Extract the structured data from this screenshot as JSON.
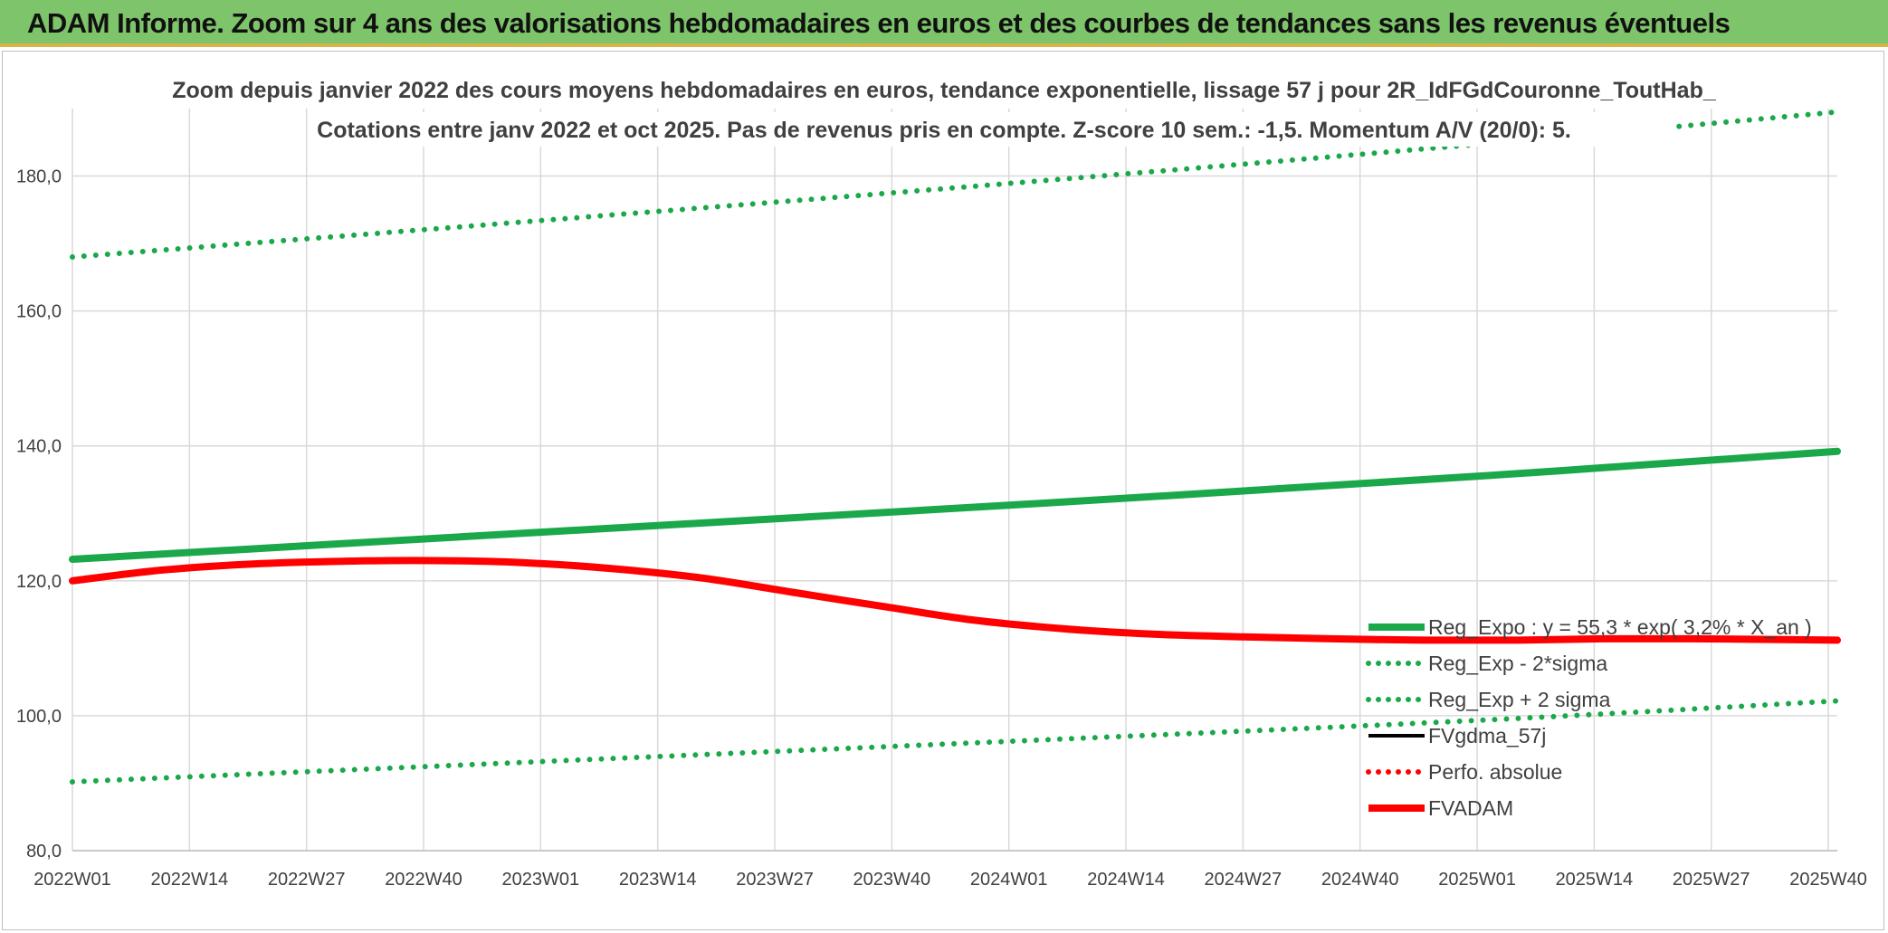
{
  "banner": {
    "title": "ADAM Informe. Zoom sur 4 ans des valorisations hebdomadaires en euros et des courbes de tendances sans les revenus éventuels"
  },
  "colors": {
    "banner_bg": "#7dc46a",
    "reg_green": "#1aa84a",
    "fvadam_red": "#ff0000",
    "fvgdma_black": "#000000",
    "perfo_red": "#ff0000",
    "grid": "#d9d9d9",
    "axis_text": "#404040",
    "title_text": "#404040"
  },
  "chart_data": {
    "type": "line",
    "title_line1": "Zoom depuis janvier 2022 des cours moyens hebdomadaires en euros, tendance exponentielle, lissage 57 j pour 2R_IdFGdCouronne_ToutHab_",
    "title_line2": "Cotations entre janv 2022 et oct 2025. Pas de revenus pris en compte. Z-score 10 sem.: -1,5. Momentum A/V (20/0): 5.",
    "xlabel": "",
    "ylabel": "",
    "ylim": [
      80,
      190
    ],
    "yticks": [
      "80,0",
      "100,0",
      "120,0",
      "140,0",
      "160,0",
      "180,0"
    ],
    "ytick_values": [
      80,
      100,
      120,
      140,
      160,
      180
    ],
    "xlim": [
      0,
      196
    ],
    "categories": [
      "2022W01",
      "2022W14",
      "2022W27",
      "2022W40",
      "2023W01",
      "2023W14",
      "2023W27",
      "2023W40",
      "2024W01",
      "2024W14",
      "2024W27",
      "2024W40",
      "2025W01",
      "2025W14",
      "2025W27",
      "2025W40"
    ],
    "category_positions": [
      0,
      13,
      26,
      39,
      52,
      65,
      78,
      91,
      104,
      117,
      130,
      143,
      156,
      169,
      182,
      195
    ],
    "legend_position": "right",
    "series": [
      {
        "name": "Reg_Expo : y = 55,3 * exp( 3,2% * X_an )",
        "style": "solid-thick",
        "color": "#1aa84a",
        "x": [
          0,
          52,
          104,
          156,
          196
        ],
        "values": [
          123.2,
          127.2,
          131.2,
          135.5,
          139.2
        ]
      },
      {
        "name": "Reg_Exp - 2*sigma",
        "style": "dotted",
        "color": "#1aa84a",
        "x": [
          0,
          52,
          104,
          156,
          196
        ],
        "values": [
          90.2,
          93.2,
          96.2,
          99.3,
          102.2
        ]
      },
      {
        "name": "Reg_Exp + 2 sigma",
        "style": "dotted",
        "color": "#1aa84a",
        "x": [
          0,
          52,
          104,
          156,
          196
        ],
        "values": [
          168.0,
          173.4,
          178.9,
          184.7,
          189.5
        ]
      },
      {
        "name": "FVgdma_57j",
        "style": "solid",
        "color": "#000000",
        "x": [
          0,
          10,
          20,
          30,
          40,
          50,
          60,
          70,
          80,
          90,
          100,
          110,
          120,
          130,
          140,
          150,
          160,
          170,
          180,
          190,
          196
        ],
        "values": [
          120.0,
          121.6,
          122.5,
          122.9,
          123.0,
          122.7,
          121.8,
          120.4,
          118.3,
          116.2,
          114.2,
          112.9,
          112.1,
          111.7,
          111.4,
          111.2,
          111.2,
          111.4,
          111.4,
          111.3,
          111.2
        ]
      },
      {
        "name": "Perfo. absolue",
        "style": "dotted",
        "color": "#ff0000",
        "x": [],
        "values": []
      },
      {
        "name": "FVADAM",
        "style": "solid-thick",
        "color": "#ff0000",
        "x": [
          0,
          10,
          20,
          30,
          40,
          50,
          60,
          70,
          80,
          90,
          100,
          110,
          120,
          130,
          140,
          150,
          160,
          170,
          180,
          190,
          196
        ],
        "values": [
          120.0,
          121.6,
          122.5,
          122.9,
          123.0,
          122.7,
          121.8,
          120.4,
          118.3,
          116.2,
          114.2,
          112.9,
          112.1,
          111.7,
          111.4,
          111.2,
          111.2,
          111.4,
          111.4,
          111.3,
          111.2
        ]
      }
    ]
  }
}
